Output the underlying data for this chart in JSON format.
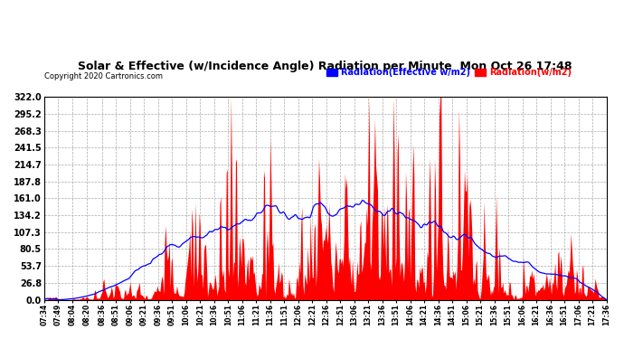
{
  "title": "Solar & Effective (w/Incidence Angle) Radiation per Minute  Mon Oct 26 17:48",
  "copyright": "Copyright 2020 Cartronics.com",
  "legend_blue": "Radiation(Effective w/m2)",
  "legend_red": "Radiation(w/m2)",
  "ylim": [
    0,
    322.0
  ],
  "yticks": [
    0.0,
    26.8,
    53.7,
    80.5,
    107.3,
    134.2,
    161.0,
    187.8,
    214.7,
    241.5,
    268.3,
    295.2,
    322.0
  ],
  "ytick_labels": [
    "0.0",
    "26.8",
    "53.7",
    "80.5",
    "107.3",
    "134.2",
    "161.0",
    "187.8",
    "214.7",
    "241.5",
    "268.3",
    "295.2",
    "322.0"
  ],
  "background_color": "#ffffff",
  "grid_color": "#aaaaaa",
  "fill_color": "#ff0000",
  "line_color": "#0000ff",
  "title_color": "#000000",
  "copyright_color": "#000000",
  "xtick_labels": [
    "07:34",
    "07:49",
    "08:04",
    "08:20",
    "08:36",
    "08:51",
    "09:06",
    "09:21",
    "09:36",
    "09:51",
    "10:06",
    "10:21",
    "10:36",
    "10:51",
    "11:06",
    "11:21",
    "11:36",
    "11:51",
    "12:06",
    "12:21",
    "12:36",
    "12:51",
    "13:06",
    "13:21",
    "13:36",
    "13:51",
    "14:06",
    "14:21",
    "14:36",
    "14:51",
    "15:06",
    "15:21",
    "15:36",
    "15:51",
    "16:06",
    "16:21",
    "16:36",
    "16:51",
    "17:06",
    "17:21",
    "17:36"
  ]
}
